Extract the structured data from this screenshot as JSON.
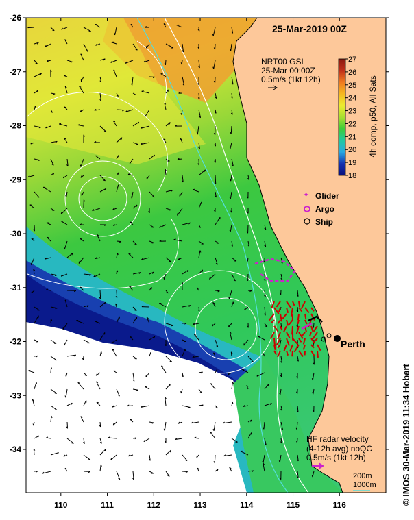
{
  "map": {
    "date_title": "25-Mar-2019 00Z",
    "x_ticks": [
      "110",
      "111",
      "112",
      "113",
      "114",
      "115",
      "116"
    ],
    "y_ticks": [
      "-26",
      "-27",
      "-28",
      "-29",
      "-30",
      "-31",
      "-32",
      "-33",
      "-34"
    ],
    "x_range": [
      109.25,
      117
    ],
    "y_range": [
      -34.8,
      -26
    ],
    "place": {
      "name": "Perth",
      "lon": 115.86,
      "lat": -31.95
    }
  },
  "current_legend": {
    "line1": "NRT00 GSL",
    "line2": "25-Mar 00:00Z",
    "line3": "0.5m/s (1kt 12h)"
  },
  "colorbar": {
    "label": "4h comp, p50, All Sats",
    "ticks": [
      "27",
      "26",
      "25",
      "24",
      "23",
      "22",
      "21",
      "20",
      "19",
      "18"
    ],
    "min": 18,
    "max": 27
  },
  "symbols": [
    {
      "label": "Glider",
      "color": "#cc22cc"
    },
    {
      "label": "Argo",
      "color": "#cc22cc"
    },
    {
      "label": "Ship",
      "color": "#000000"
    }
  ],
  "hf_legend": {
    "line1": "HF radar velocity",
    "line2": "(4-12h avg) noQC",
    "line3": "0.5m/s (1kt 12h)"
  },
  "depth_legend": {
    "c200": "200m",
    "c1000": "1000m"
  },
  "colors": {
    "land": "#fdc89a",
    "no_data": "#ffffff",
    "hf_vectors": "#cc0000",
    "glider": "#cc22cc",
    "contour": "#ffffff",
    "isobath_200": "#ffffff",
    "isobath_1000": "#55dddd"
  },
  "credit": "© IMOS 30-Mar-2019 11:34 Hobart"
}
